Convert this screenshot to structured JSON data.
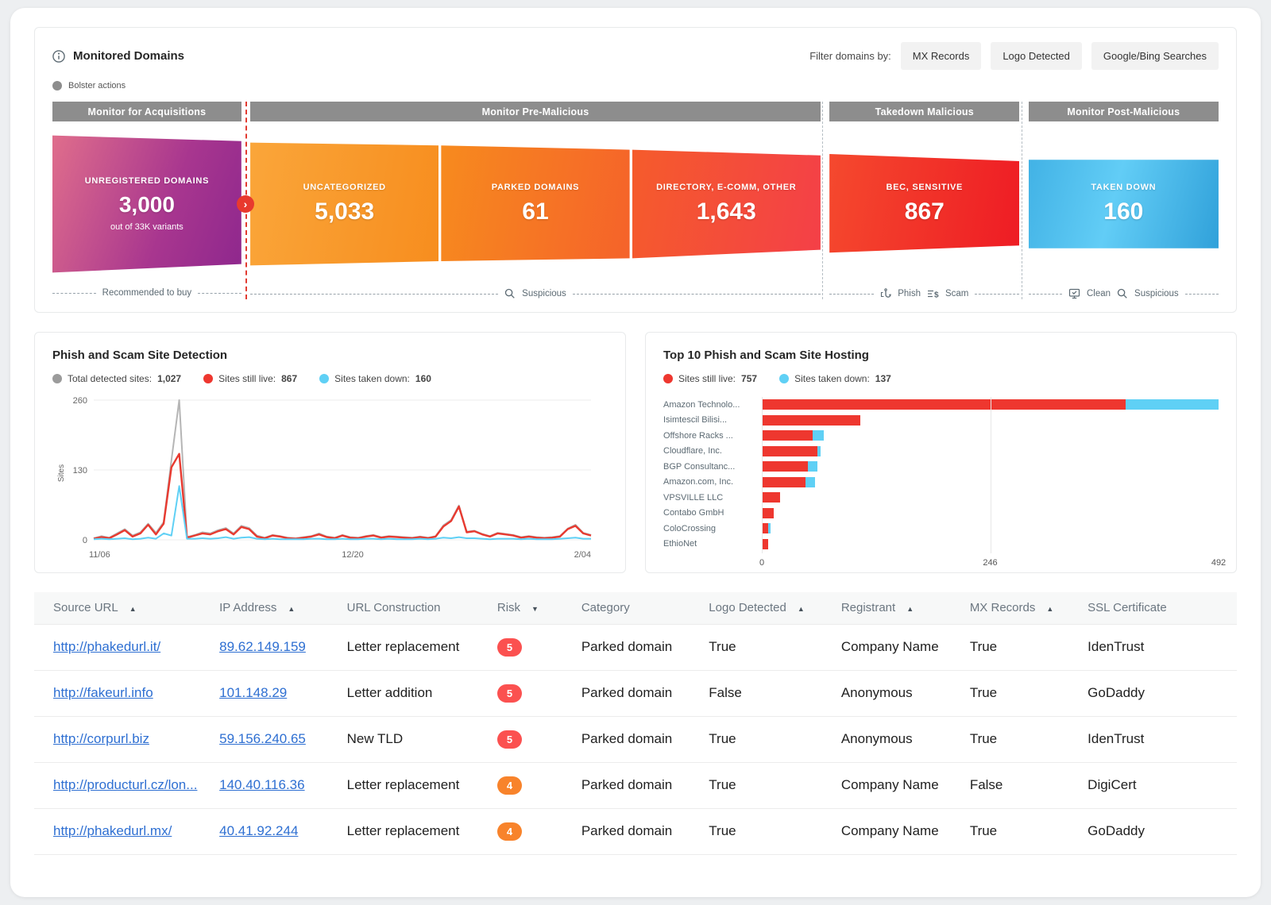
{
  "header": {
    "title": "Monitored Domains",
    "legend": "Bolster actions",
    "filter_label": "Filter domains by:",
    "filters": [
      "MX Records",
      "Logo Detected",
      "Google/Bing Searches"
    ]
  },
  "funnel": {
    "groups": [
      {
        "label": "Monitor for Acquisitions"
      },
      {
        "label": "Monitor Pre-Malicious"
      },
      {
        "label": "Takedown Malicious"
      },
      {
        "label": "Monitor Post-Malicious"
      }
    ],
    "segments": [
      {
        "title": "UNREGISTERED DOMAINS",
        "value": "3,000",
        "subtitle": "out of 33K variants"
      },
      {
        "title": "UNCATEGORIZED",
        "value": "5,033"
      },
      {
        "title": "PARKED DOMAINS",
        "value": "61"
      },
      {
        "title": "DIRECTORY, E-COMM, OTHER",
        "value": "1,643"
      },
      {
        "title": "BEC, SENSITIVE",
        "value": "867"
      },
      {
        "title": "TAKEN DOWN",
        "value": "160"
      }
    ],
    "footers": {
      "acquisitions": "Recommended to buy",
      "pre": "Suspicious",
      "takedown": [
        "Phish",
        "Scam"
      ],
      "post": [
        "Clean",
        "Suspicious"
      ]
    }
  },
  "colors": {
    "total_gray": "#b5b5b5",
    "live_red": "#ee372f",
    "taken_cyan": "#5fd0f5",
    "legend_gray": "#9b9b9b",
    "risk_high": "#FB5150",
    "risk_medium": "#F8832B",
    "link_blue": "#2e6fd2"
  },
  "chart_data": [
    {
      "type": "line",
      "title": "Phish and Scam Site Detection",
      "ylabel": "Sites",
      "ylim": [
        0,
        260
      ],
      "yticks": [
        0,
        130,
        260
      ],
      "xtick_labels": [
        "11/06",
        "12/20",
        "2/04"
      ],
      "grid": "horizontal",
      "legend_position": "top",
      "series": [
        {
          "name": "Total detected sites",
          "label": "Total detected sites:",
          "total": "1,027",
          "color": "#b5b5b5",
          "values": [
            3,
            7,
            4,
            12,
            20,
            8,
            14,
            30,
            13,
            33,
            148,
            260,
            5,
            9,
            14,
            12,
            18,
            22,
            12,
            26,
            22,
            8,
            4,
            9,
            7,
            4,
            3,
            5,
            7,
            12,
            6,
            4,
            9,
            5,
            4,
            7,
            9,
            5,
            7,
            6,
            5,
            4,
            6,
            4,
            7,
            27,
            37,
            64,
            15,
            17,
            11,
            7,
            13,
            11,
            9,
            5,
            7,
            5,
            4,
            5,
            7,
            21,
            28,
            13,
            9
          ]
        },
        {
          "name": "Sites still live",
          "label": "Sites still live:",
          "total": "867",
          "color": "#e83a30",
          "values": [
            2,
            5,
            3,
            10,
            18,
            6,
            12,
            28,
            10,
            30,
            135,
            160,
            4,
            8,
            12,
            10,
            16,
            20,
            10,
            24,
            20,
            6,
            3,
            8,
            6,
            3,
            2,
            4,
            6,
            10,
            5,
            3,
            8,
            4,
            3,
            6,
            8,
            4,
            6,
            5,
            4,
            3,
            5,
            3,
            6,
            25,
            35,
            62,
            14,
            16,
            10,
            6,
            12,
            10,
            8,
            4,
            6,
            4,
            3,
            4,
            6,
            20,
            26,
            12,
            8
          ]
        },
        {
          "name": "Sites taken down",
          "label": "Sites taken down:",
          "total": "160",
          "color": "#5fd0f5",
          "values": [
            1,
            2,
            1,
            2,
            3,
            1,
            2,
            4,
            2,
            12,
            8,
            100,
            2,
            2,
            3,
            2,
            3,
            5,
            2,
            4,
            5,
            2,
            1,
            2,
            1,
            1,
            1,
            1,
            2,
            2,
            1,
            1,
            2,
            1,
            1,
            2,
            2,
            1,
            2,
            1,
            1,
            1,
            2,
            1,
            2,
            4,
            3,
            5,
            3,
            3,
            2,
            1,
            2,
            2,
            2,
            1,
            2,
            1,
            1,
            1,
            2,
            3,
            4,
            2,
            2
          ]
        }
      ]
    },
    {
      "type": "bar",
      "orientation": "horizontal",
      "title": "Top 10 Phish and Scam Site Hosting",
      "xlim": [
        0,
        492
      ],
      "xticks": [
        0,
        246,
        492
      ],
      "categories": [
        "Amazon Technolo...",
        "Isimtescil Bilisi...",
        "Offshore Racks ...",
        "Cloudflare, Inc.",
        "BGP Consultanc...",
        "Amazon.com, Inc.",
        "VPSVILLE LLC",
        "Contabo GmbH",
        "ColoCrossing",
        "EthioNet"
      ],
      "series": [
        {
          "name": "Sites still live",
          "label": "Sites still live:",
          "total": "757",
          "color": "#ee372f",
          "values": [
            392,
            106,
            55,
            60,
            50,
            47,
            20,
            13,
            7,
            7
          ]
        },
        {
          "name": "Sites taken down",
          "label": "Sites taken down:",
          "total": "137",
          "color": "#5fd0f5",
          "values": [
            100,
            0,
            12,
            3,
            10,
            10,
            0,
            0,
            2,
            0
          ]
        }
      ]
    }
  ],
  "table": {
    "columns": [
      {
        "label": "Source URL",
        "sort": "asc"
      },
      {
        "label": "IP Address",
        "sort": "asc"
      },
      {
        "label": "URL Construction",
        "sort": null
      },
      {
        "label": "Risk",
        "sort": "desc"
      },
      {
        "label": "Category",
        "sort": null
      },
      {
        "label": "Logo Detected",
        "sort": "asc"
      },
      {
        "label": "Registrant",
        "sort": "asc"
      },
      {
        "label": "MX Records",
        "sort": "asc"
      },
      {
        "label": "SSL Certificate",
        "sort": null
      }
    ],
    "rows": [
      {
        "url": "http://phakedurl.it/",
        "ip": "89.62.149.159",
        "construction": "Letter replacement",
        "risk": {
          "value": "5",
          "color": "#FB5150"
        },
        "category": "Parked domain",
        "logo": "True",
        "registrant": "Company Name",
        "mx": "True",
        "ssl": "IdenTrust"
      },
      {
        "url": "http://fakeurl.info",
        "ip": "101.148.29",
        "construction": "Letter addition",
        "risk": {
          "value": "5",
          "color": "#FB5150"
        },
        "category": "Parked domain",
        "logo": "False",
        "registrant": "Anonymous",
        "mx": "True",
        "ssl": "GoDaddy"
      },
      {
        "url": "http://corpurl.biz",
        "ip": "59.156.240.65",
        "construction": "New TLD",
        "risk": {
          "value": "5",
          "color": "#FB5150"
        },
        "category": "Parked domain",
        "logo": "True",
        "registrant": "Anonymous",
        "mx": "True",
        "ssl": "IdenTrust"
      },
      {
        "url": "http://producturl.cz/lon...",
        "ip": "140.40.116.36",
        "construction": "Letter replacement",
        "risk": {
          "value": "4",
          "color": "#F8832B"
        },
        "category": "Parked domain",
        "logo": "True",
        "registrant": "Company Name",
        "mx": "False",
        "ssl": "DigiCert"
      },
      {
        "url": "http://phakedurl.mx/",
        "ip": "40.41.92.244",
        "construction": "Letter replacement",
        "risk": {
          "value": "4",
          "color": "#F8832B"
        },
        "category": "Parked domain",
        "logo": "True",
        "registrant": "Company Name",
        "mx": "True",
        "ssl": "GoDaddy"
      }
    ]
  }
}
